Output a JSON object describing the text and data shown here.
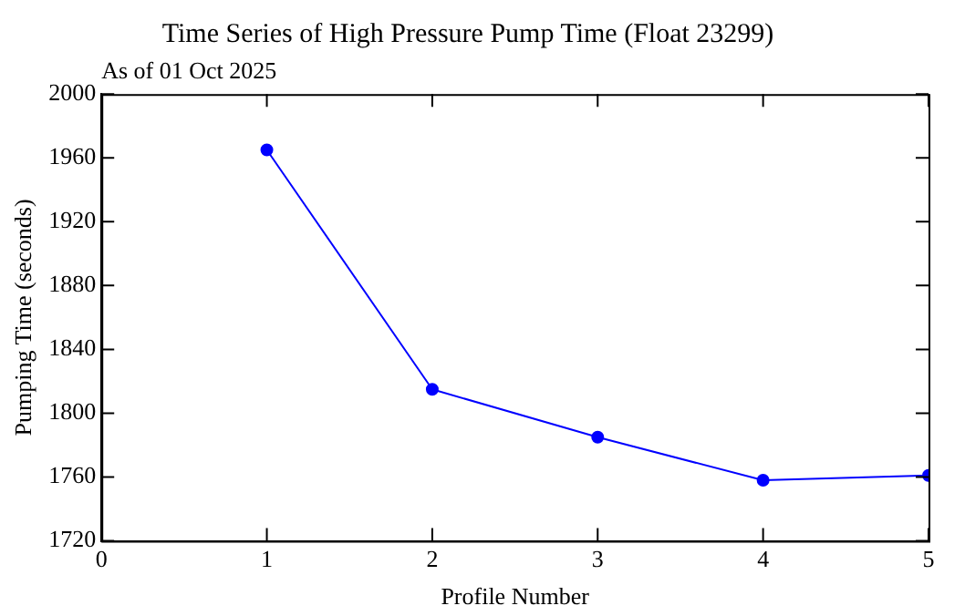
{
  "chart_data": {
    "type": "line",
    "title": "Time Series of High Pressure Pump Time (Float 23299)",
    "subtitle": "As of 01 Oct 2025",
    "xlabel": "Profile Number",
    "ylabel": "Pumping Time (seconds)",
    "x": [
      1,
      2,
      3,
      4,
      5
    ],
    "series": [
      {
        "color": "#0000ff",
        "values": [
          1965,
          1815,
          1785,
          1758,
          1761
        ]
      }
    ],
    "xlim": [
      0,
      5
    ],
    "xticks": [
      0,
      1,
      2,
      3,
      4,
      5
    ],
    "ylim": [
      1720,
      2000
    ],
    "yticks": [
      1720,
      1760,
      1800,
      1840,
      1880,
      1920,
      1960,
      2000
    ],
    "grid": false,
    "legend": false,
    "marker": "circle",
    "line_style": "solid"
  }
}
